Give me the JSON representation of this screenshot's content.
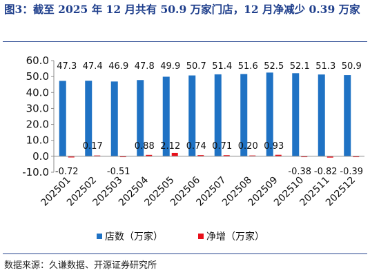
{
  "title": "图3：截至 2025 年 12 月共有 50.9 万家门店，12 月净减少 0.39 万家",
  "source": "数据来源：久谦数据、开源证券研究所",
  "chart_data": {
    "type": "bar",
    "categories": [
      "202501",
      "202502",
      "202503",
      "202504",
      "202505",
      "202506",
      "202507",
      "202508",
      "202509",
      "202510",
      "202511",
      "202512"
    ],
    "series": [
      {
        "name": "店数（万家）",
        "color": "#1f72c4",
        "values": [
          47.3,
          47.4,
          46.9,
          47.8,
          49.9,
          50.7,
          51.4,
          51.6,
          52.5,
          52.1,
          51.3,
          50.9
        ]
      },
      {
        "name": "净增（万家）",
        "color": "#e8101a",
        "values": [
          -0.72,
          0.17,
          -0.51,
          0.88,
          2.12,
          0.74,
          0.71,
          0.2,
          0.93,
          -0.38,
          -0.82,
          -0.39
        ]
      }
    ],
    "value_labels": {
      "series1": [
        "47.3",
        "47.4",
        "46.9",
        "47.8",
        "49.9",
        "50.7",
        "51.4",
        "51.6",
        "52.5",
        "52.1",
        "51.3",
        "50.9"
      ],
      "series2": [
        "-0.72",
        "0.17",
        "-0.51",
        "0.88",
        "2.12",
        "0.74",
        "0.71",
        "0.20",
        "0.93",
        "-0.38",
        "-0.82",
        "-0.39"
      ]
    },
    "ylim": [
      -10,
      60
    ],
    "yticks": [
      -10,
      0,
      10,
      20,
      30,
      40,
      50,
      60
    ],
    "ytick_labels": [
      "-10.0",
      "0.0",
      "10.0",
      "20.0",
      "30.0",
      "40.0",
      "50.0",
      "60.0"
    ],
    "grid": false,
    "legend": "bottom-center"
  }
}
